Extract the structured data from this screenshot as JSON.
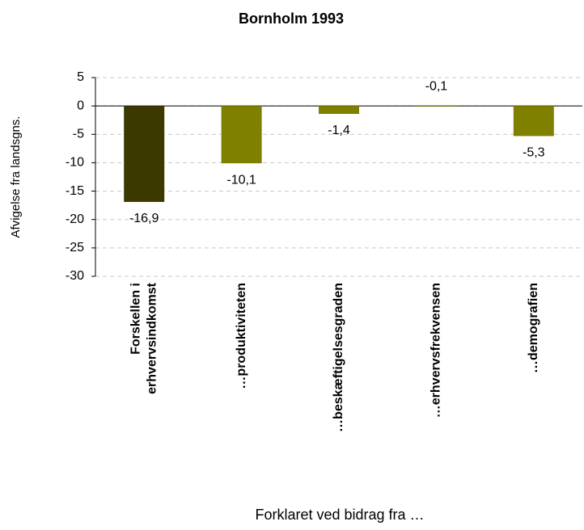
{
  "chart_data": {
    "type": "bar",
    "title": "Bornholm 1993",
    "y_label": "Afvigelse fra landsgns.",
    "x_label": "Forklaret ved bidrag fra …",
    "categories": [
      [
        "Forskellen i",
        "erhvervsindkomst"
      ],
      "…produktiviteten",
      "…beskæftigelsesgraden",
      "…erhvervsfrekvensen",
      "…demografien"
    ],
    "values": [
      -16.9,
      -10.1,
      -1.4,
      -0.1,
      -5.3
    ],
    "value_labels": [
      "-16,9",
      "-10,1",
      "-1,4",
      "-0,1",
      "-5,3"
    ],
    "colors": [
      "#3b3900",
      "#808000",
      "#808000",
      "#808000",
      "#808000"
    ],
    "ylim": [
      -30,
      5
    ],
    "yticks": [
      5,
      0,
      -5,
      -10,
      -15,
      -20,
      -25,
      -30
    ],
    "grid": true
  }
}
